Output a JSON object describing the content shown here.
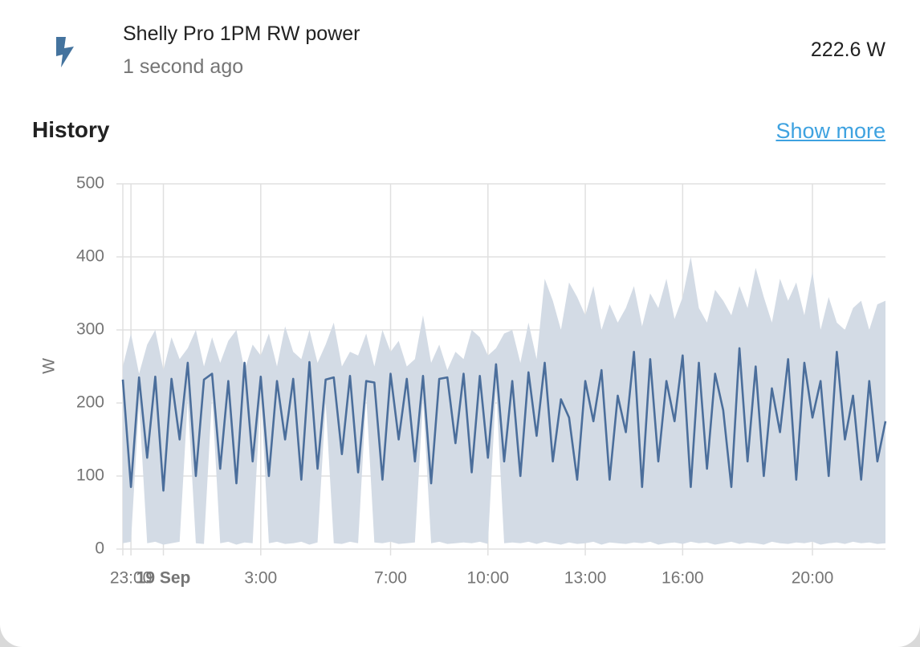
{
  "header": {
    "title": "Shelly Pro 1PM RW power",
    "subtitle": "1 second ago",
    "state": "222.6 W"
  },
  "section": {
    "title": "History",
    "link": "Show more"
  },
  "chart_data": {
    "type": "line",
    "ylabel": "W",
    "ylim": [
      0,
      500
    ],
    "yticks": [
      0,
      100,
      200,
      300,
      400,
      500
    ],
    "xlim": [
      -1.25,
      22.25
    ],
    "xticks": [
      {
        "value": -1,
        "label": "23:00"
      },
      {
        "value": 0,
        "label": "19 Sep"
      },
      {
        "value": 3,
        "label": "3:00"
      },
      {
        "value": 7,
        "label": "7:00"
      },
      {
        "value": 10,
        "label": "10:00"
      },
      {
        "value": 13,
        "label": "13:00"
      },
      {
        "value": 16,
        "label": "16:00"
      },
      {
        "value": 20,
        "label": "20:00"
      }
    ],
    "grid": true,
    "x": [
      -1.25,
      -1,
      -0.75,
      -0.5,
      -0.25,
      0,
      0.25,
      0.5,
      0.75,
      1,
      1.25,
      1.5,
      1.75,
      2,
      2.25,
      2.5,
      2.75,
      3,
      3.25,
      3.5,
      3.75,
      4,
      4.25,
      4.5,
      4.75,
      5,
      5.25,
      5.5,
      5.75,
      6,
      6.25,
      6.5,
      6.75,
      7,
      7.25,
      7.5,
      7.75,
      8,
      8.25,
      8.5,
      8.75,
      9,
      9.25,
      9.5,
      9.75,
      10,
      10.25,
      10.5,
      10.75,
      11,
      11.25,
      11.5,
      11.75,
      12,
      12.25,
      12.5,
      12.75,
      13,
      13.25,
      13.5,
      13.75,
      14,
      14.25,
      14.5,
      14.75,
      15,
      15.25,
      15.5,
      15.75,
      16,
      16.25,
      16.5,
      16.75,
      17,
      17.25,
      17.5,
      17.75,
      18,
      18.25,
      18.5,
      18.75,
      19,
      19.25,
      19.5,
      19.75,
      20,
      20.25,
      20.5,
      20.75,
      21,
      21.25,
      21.5,
      21.75,
      22,
      22.25
    ],
    "series": [
      {
        "color": "#4b6e9b",
        "values": [
          232,
          85,
          235,
          125,
          236,
          80,
          233,
          150,
          255,
          100,
          232,
          240,
          110,
          230,
          90,
          255,
          120,
          236,
          100,
          230,
          150,
          233,
          95,
          256,
          110,
          232,
          235,
          130,
          237,
          105,
          230,
          228,
          95,
          240,
          150,
          233,
          120,
          237,
          90,
          233,
          235,
          145,
          240,
          105,
          237,
          125,
          253,
          120,
          230,
          100,
          242,
          155,
          255,
          120,
          205,
          180,
          95,
          230,
          175,
          245,
          95,
          210,
          160,
          270,
          85,
          260,
          120,
          230,
          175,
          265,
          85,
          255,
          110,
          240,
          190,
          85,
          275,
          120,
          250,
          100,
          220,
          160,
          260,
          95,
          255,
          180,
          230,
          100,
          270,
          150,
          210,
          95,
          230,
          120,
          175
        ]
      }
    ],
    "band": {
      "color": "#d3dbe5",
      "low": [
        8,
        10,
        200,
        8,
        10,
        6,
        8,
        10,
        205,
        8,
        7,
        210,
        8,
        10,
        6,
        9,
        8,
        215,
        8,
        10,
        7,
        8,
        10,
        6,
        9,
        200,
        8,
        7,
        10,
        8,
        210,
        9,
        8,
        10,
        7,
        8,
        9,
        205,
        8,
        10,
        7,
        8,
        9,
        8,
        10,
        7,
        220,
        8,
        9,
        8,
        10,
        7,
        10,
        8,
        6,
        9,
        7,
        8,
        10,
        6,
        9,
        8,
        7,
        9,
        8,
        10,
        6,
        8,
        9,
        7,
        10,
        8,
        9,
        6,
        8,
        10,
        7,
        9,
        8,
        6,
        10,
        8,
        7,
        9,
        8,
        10,
        6,
        8,
        9,
        7,
        10,
        8,
        9,
        7,
        8
      ],
      "high": [
        250,
        295,
        240,
        280,
        300,
        245,
        290,
        260,
        275,
        300,
        250,
        290,
        255,
        285,
        300,
        245,
        280,
        265,
        295,
        250,
        305,
        270,
        260,
        300,
        255,
        280,
        310,
        250,
        270,
        265,
        295,
        250,
        300,
        270,
        285,
        250,
        260,
        320,
        255,
        280,
        245,
        270,
        260,
        300,
        290,
        265,
        275,
        295,
        300,
        255,
        310,
        260,
        370,
        340,
        300,
        365,
        345,
        320,
        360,
        300,
        335,
        310,
        330,
        360,
        305,
        350,
        330,
        370,
        315,
        345,
        400,
        330,
        310,
        355,
        340,
        320,
        360,
        330,
        385,
        345,
        310,
        370,
        340,
        365,
        320,
        380,
        300,
        345,
        310,
        300,
        330,
        340,
        300,
        335,
        340
      ]
    }
  }
}
